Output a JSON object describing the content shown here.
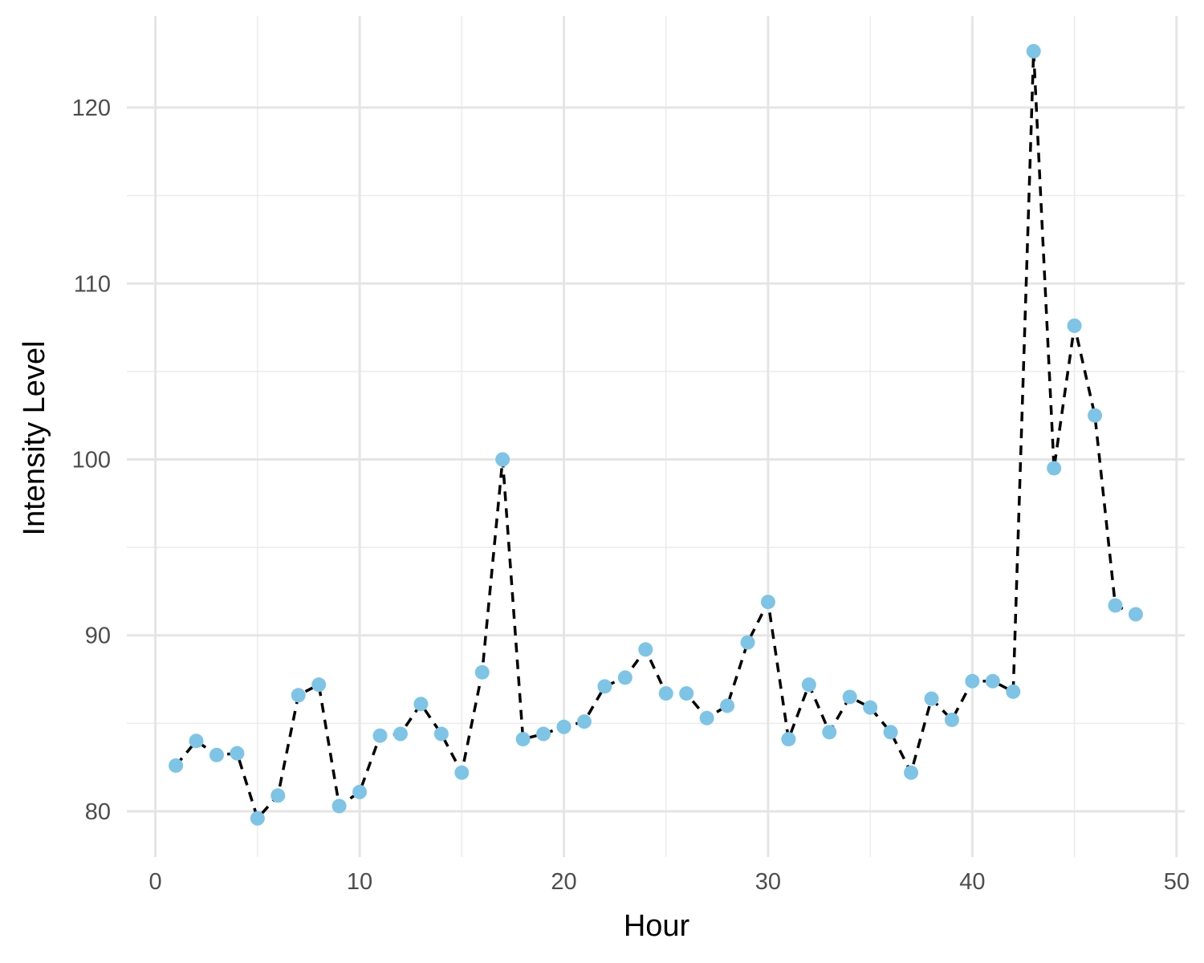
{
  "chart_data": {
    "type": "line",
    "title": "",
    "xlabel": "Hour",
    "ylabel": "Intensity Level",
    "xlim": [
      -1.4,
      50.4
    ],
    "ylim": [
      77.4,
      125.2
    ],
    "x_ticks": [
      0,
      10,
      20,
      30,
      40,
      50
    ],
    "x_ticks_minor": [
      5,
      15,
      25,
      35,
      45
    ],
    "y_ticks": [
      80,
      90,
      100,
      110,
      120
    ],
    "y_ticks_minor": [
      85,
      95,
      105,
      115
    ],
    "grid": true,
    "legend": "none",
    "line_color": "#000000",
    "line_style": "dashed",
    "point_color": "#7ec4e6",
    "series": [
      {
        "x": [
          1,
          2,
          3,
          4,
          5,
          6,
          7,
          8,
          9,
          10,
          11,
          12,
          13,
          14,
          15,
          16,
          17,
          18,
          19,
          20,
          21,
          22,
          23,
          24,
          25,
          26,
          27,
          28,
          29,
          30,
          31,
          32,
          33,
          34,
          35,
          36,
          37,
          38,
          39,
          40,
          41,
          42,
          43,
          44,
          45,
          46,
          47,
          48
        ],
        "y": [
          82.6,
          84.0,
          83.2,
          83.3,
          79.6,
          80.9,
          86.6,
          87.2,
          80.3,
          81.1,
          84.3,
          84.4,
          86.1,
          84.4,
          82.2,
          87.9,
          100.0,
          84.1,
          84.4,
          84.8,
          85.1,
          87.1,
          87.6,
          89.2,
          86.7,
          86.7,
          85.3,
          86.0,
          89.6,
          91.9,
          84.1,
          87.2,
          84.5,
          86.5,
          85.9,
          84.5,
          82.2,
          86.4,
          85.2,
          87.4,
          87.4,
          86.8,
          123.2,
          99.5,
          107.6,
          102.5,
          91.7,
          91.2
        ]
      }
    ]
  }
}
